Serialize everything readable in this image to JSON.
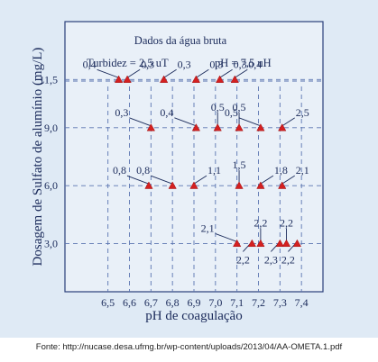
{
  "chart_data": {
    "type": "scatter",
    "info_box": {
      "title": "Dados da água bruta",
      "turbidez": "Turbidez = 2,5 uT",
      "ph": "pH = 7,5 uH"
    },
    "xlabel": "pH de coagulação",
    "ylabel": "Dosagem de Sulfato de alumínio (mg/L)",
    "xlim": [
      6.3,
      7.5
    ],
    "ylim": [
      0.5,
      14.5
    ],
    "xticks": [
      6.5,
      6.6,
      6.7,
      6.8,
      6.9,
      7.0,
      7.1,
      7.2,
      7.3,
      7.4
    ],
    "xtick_labels": [
      "6,5",
      "6,6",
      "6,7",
      "6,8",
      "6,9",
      "7,0",
      "7,1",
      "7,2",
      "7,3",
      "7,4"
    ],
    "yticks": [
      3.0,
      6.0,
      9.0,
      11.5
    ],
    "ytick_labels": [
      "3,0",
      "6,0",
      "9,0",
      "11,5"
    ],
    "grid": "dashed",
    "marker": "triangle",
    "marker_color": "#d42020",
    "points": [
      {
        "x": 6.55,
        "y": 11.5,
        "label": "0,4",
        "label_side": "left"
      },
      {
        "x": 6.59,
        "y": 11.5,
        "label": "0,3",
        "label_side": "right"
      },
      {
        "x": 6.76,
        "y": 11.5,
        "label": "0,3",
        "label_side": "right"
      },
      {
        "x": 6.91,
        "y": 11.5,
        "label": "0,3",
        "label_side": "right"
      },
      {
        "x": 7.02,
        "y": 11.5,
        "label": "0,3",
        "label_side": "right"
      },
      {
        "x": 7.09,
        "y": 11.5,
        "label": "0,4",
        "label_side": "right"
      },
      {
        "x": 6.7,
        "y": 9.0,
        "label": "0,3",
        "label_side": "left"
      },
      {
        "x": 6.91,
        "y": 9.0,
        "label": "0,4",
        "label_side": "left"
      },
      {
        "x": 7.01,
        "y": 9.0,
        "label": "0,5",
        "label_side": "above"
      },
      {
        "x": 7.11,
        "y": 9.0,
        "label": "0,5",
        "label_side": "above"
      },
      {
        "x": 7.21,
        "y": 9.0,
        "label": "0,5",
        "label_side": "left"
      },
      {
        "x": 7.31,
        "y": 9.0,
        "label": "2,5",
        "label_side": "right"
      },
      {
        "x": 6.69,
        "y": 6.0,
        "label": "0,8",
        "label_side": "left"
      },
      {
        "x": 6.8,
        "y": 6.0,
        "label": "0,8",
        "label_side": "left"
      },
      {
        "x": 6.9,
        "y": 6.0,
        "label": "1,1",
        "label_side": "right"
      },
      {
        "x": 7.11,
        "y": 6.0,
        "label": "1,5",
        "label_side": "above"
      },
      {
        "x": 7.21,
        "y": 6.0,
        "label": "1,8",
        "label_side": "right"
      },
      {
        "x": 7.31,
        "y": 6.0,
        "label": "2,1",
        "label_side": "right"
      },
      {
        "x": 7.1,
        "y": 3.0,
        "label": "2,1",
        "label_side": "left"
      },
      {
        "x": 7.17,
        "y": 3.0,
        "label": "2,2",
        "label_side": "below"
      },
      {
        "x": 7.21,
        "y": 3.0,
        "label": "2,2",
        "label_side": "above"
      },
      {
        "x": 7.3,
        "y": 3.0,
        "label": "2,3",
        "label_side": "below"
      },
      {
        "x": 7.33,
        "y": 3.0,
        "label": "2,2",
        "label_side": "above"
      },
      {
        "x": 7.38,
        "y": 3.0,
        "label": "2,2",
        "label_side": "below"
      }
    ]
  },
  "source_caption": "Fonte: http://nucase.desa.ufmg.br/wp-content/uploads/2013/04/AA-OMETA.1.pdf",
  "colors": {
    "frame_bg": "#dfeaf5",
    "plot_bg": "#e9f0f8",
    "border": "#2b3f7a",
    "grid": "#5a74b0",
    "text": "#1a2a5a",
    "marker": "#d42020"
  }
}
